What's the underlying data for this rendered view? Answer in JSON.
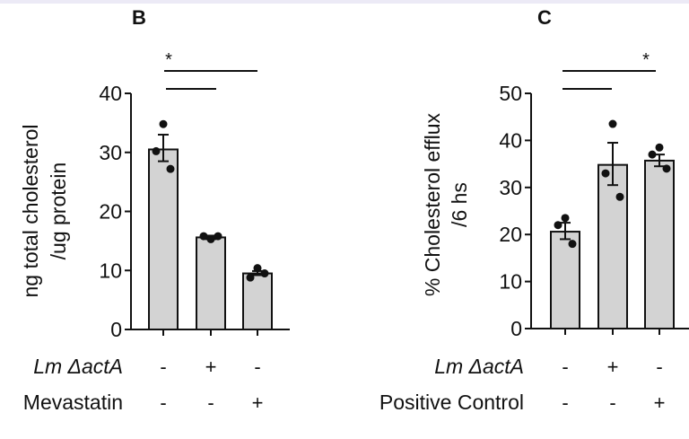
{
  "chart_data": [
    {
      "type": "bar",
      "panel_label": "B",
      "ylabel_lines": [
        "ng total cholesterol",
        "/ug protein"
      ],
      "ylim": [
        0,
        40
      ],
      "yticks": [
        0,
        10,
        20,
        30,
        40
      ],
      "grid": false,
      "bar_color": "#d3d3d3",
      "categories": [
        "1",
        "2",
        "3"
      ],
      "values": [
        30.5,
        15.6,
        9.5
      ],
      "error_low": [
        28.5,
        15.3,
        9.2
      ],
      "error_high": [
        33.0,
        15.9,
        9.9
      ],
      "points": [
        [
          34.8,
          30.2,
          27.2
        ],
        [
          15.3,
          15.8,
          15.8
        ],
        [
          10.4,
          8.8,
          9.5
        ]
      ],
      "conditions": [
        {
          "label": "Lm ΔactA",
          "italic": true,
          "values": [
            "-",
            "+",
            "-"
          ]
        },
        {
          "label": "Mevastatin",
          "italic": false,
          "values": [
            "-",
            "-",
            "+"
          ]
        }
      ],
      "significance": [
        {
          "from": 0,
          "to": 2,
          "label": "*"
        },
        {
          "from": 0,
          "to": 1,
          "label": ""
        }
      ]
    },
    {
      "type": "bar",
      "panel_label": "C",
      "ylabel_lines": [
        "% Cholesterol efflux",
        "/6 hs"
      ],
      "ylim": [
        0,
        50
      ],
      "yticks": [
        0,
        10,
        20,
        30,
        40,
        50
      ],
      "grid": false,
      "bar_color": "#d3d3d3",
      "categories": [
        "1",
        "2",
        "3"
      ],
      "values": [
        20.6,
        34.8,
        35.7
      ],
      "error_low": [
        19.0,
        30.5,
        34.5
      ],
      "error_high": [
        22.5,
        39.5,
        37.0
      ],
      "points": [
        [
          23.5,
          22.0,
          18.0
        ],
        [
          43.5,
          33.0,
          28.0
        ],
        [
          38.5,
          37.0,
          34.0
        ]
      ],
      "conditions": [
        {
          "label": "Lm ΔactA",
          "italic": true,
          "values": [
            "-",
            "+",
            "-"
          ]
        },
        {
          "label": "Positive Control",
          "italic": false,
          "values": [
            "-",
            "-",
            "+"
          ]
        }
      ],
      "significance": [
        {
          "from": 0,
          "to": 2,
          "label": "*"
        },
        {
          "from": 0,
          "to": 1,
          "label": ""
        }
      ]
    }
  ]
}
